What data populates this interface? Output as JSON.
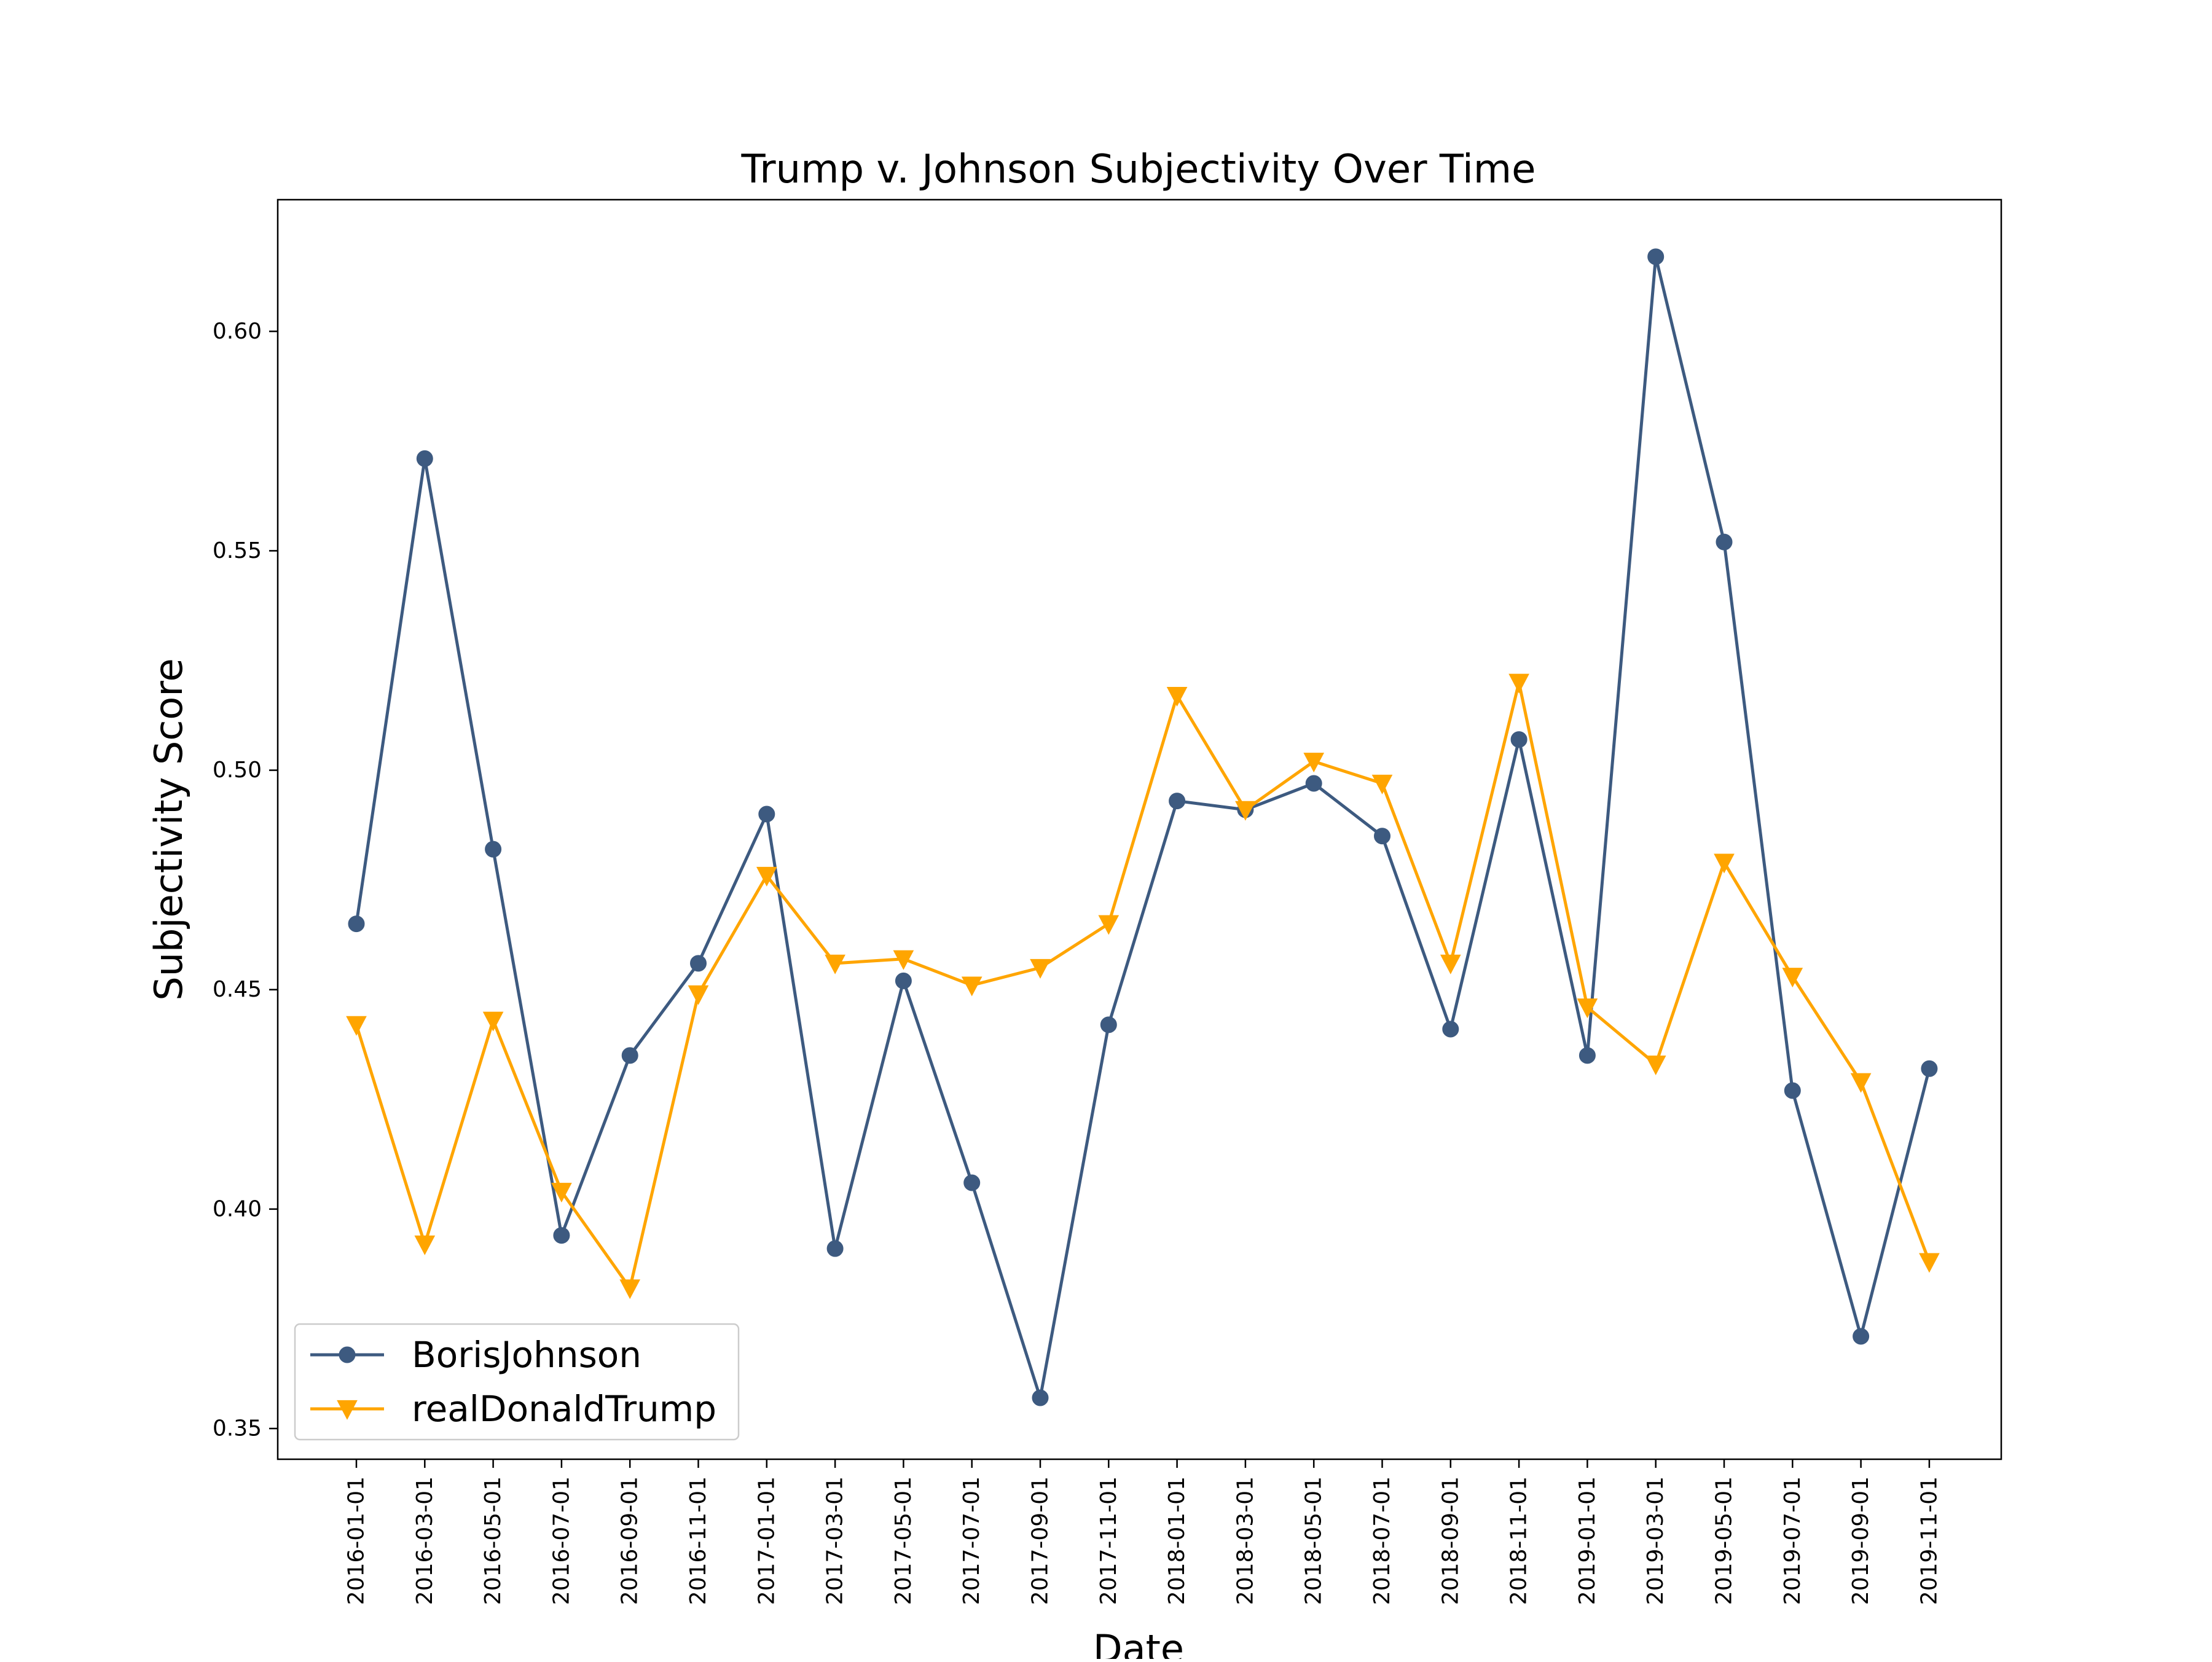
{
  "chart_data": {
    "type": "line",
    "title": "Trump v. Johnson Subjectivity Over Time",
    "xlabel": "Date",
    "ylabel": "Subjectivity Score",
    "categories": [
      "2016-01-01",
      "2016-03-01",
      "2016-05-01",
      "2016-07-01",
      "2016-09-01",
      "2016-11-01",
      "2017-01-01",
      "2017-03-01",
      "2017-05-01",
      "2017-07-01",
      "2017-09-01",
      "2017-11-01",
      "2018-01-01",
      "2018-03-01",
      "2018-05-01",
      "2018-07-01",
      "2018-09-01",
      "2018-11-01",
      "2019-01-01",
      "2019-03-01",
      "2019-05-01",
      "2019-07-01",
      "2019-09-01",
      "2019-11-01"
    ],
    "ylim": [
      0.343,
      0.63
    ],
    "yticks": [
      "0.35",
      "0.40",
      "0.45",
      "0.50",
      "0.55",
      "0.60"
    ],
    "grid": false,
    "legend_position": "bottom-left",
    "series": [
      {
        "name": "BorisJohnson",
        "color": "#3d5a80",
        "marker": "circle",
        "values": [
          0.465,
          0.571,
          0.482,
          0.394,
          0.435,
          0.456,
          0.49,
          0.391,
          0.452,
          0.406,
          0.357,
          0.442,
          0.493,
          0.491,
          0.497,
          0.485,
          0.441,
          0.507,
          0.435,
          0.617,
          0.552,
          0.427,
          0.371,
          0.432
        ]
      },
      {
        "name": "realDonaldTrump",
        "color": "#ffa500",
        "marker": "triangle-down",
        "values": [
          0.442,
          0.392,
          0.443,
          0.404,
          0.382,
          0.449,
          0.476,
          0.456,
          0.457,
          0.451,
          0.455,
          0.465,
          0.517,
          0.491,
          0.502,
          0.497,
          0.456,
          0.52,
          0.446,
          0.433,
          0.479,
          0.453,
          0.429,
          0.388
        ]
      }
    ]
  }
}
